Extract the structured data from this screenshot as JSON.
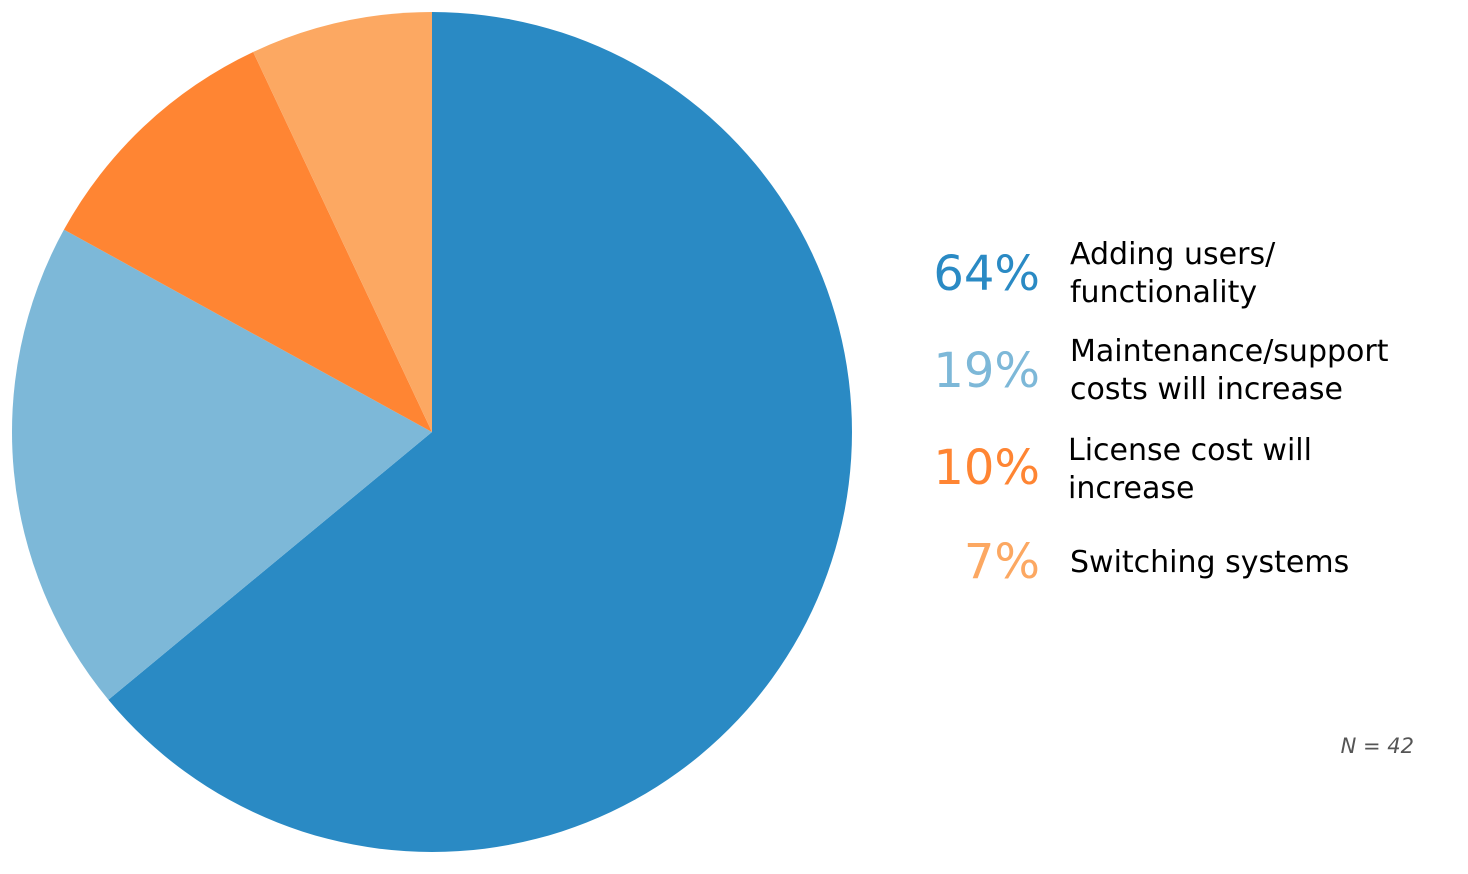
{
  "chart_data": {
    "type": "pie",
    "title": "",
    "slices": [
      {
        "label": "Adding users/\nfunctionality",
        "value": 64,
        "value_label": "64%",
        "color": "#2A8AC4"
      },
      {
        "label": "Maintenance/support\ncosts will increase",
        "value": 19,
        "value_label": "19%",
        "color": "#7DB8D8"
      },
      {
        "label": "License cost will\nincrease",
        "value": 10,
        "value_label": "10%",
        "color": "#FF8533"
      },
      {
        "label": "Switching systems",
        "value": 7,
        "value_label": "7%",
        "color": "#FCA862"
      }
    ],
    "start": "top",
    "direction": "clockwise",
    "legend_position": "right",
    "footnote": "N = 42"
  }
}
